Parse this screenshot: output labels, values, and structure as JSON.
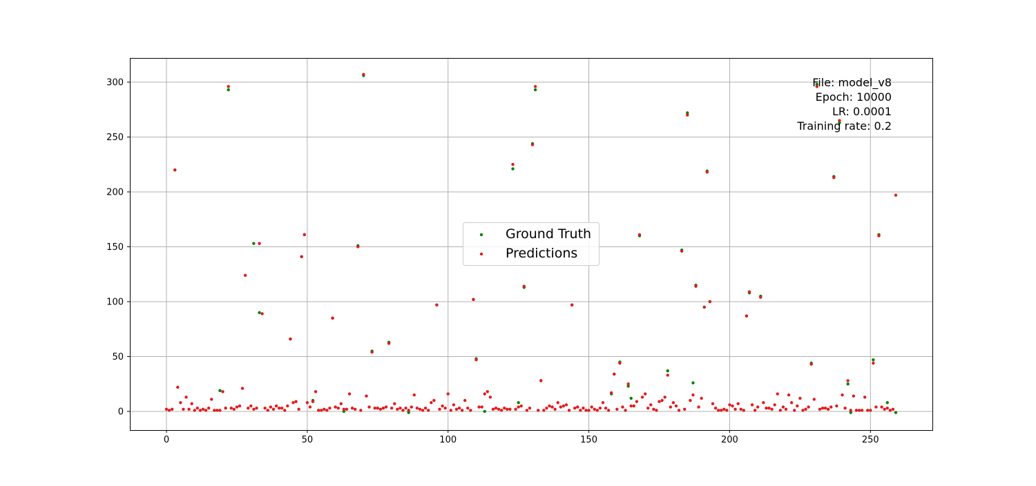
{
  "chart_data": {
    "type": "scatter",
    "title": "",
    "xlabel": "",
    "ylabel": "",
    "xlim": [
      -13,
      272
    ],
    "ylim": [
      -17,
      322
    ],
    "xticks": [
      0,
      50,
      100,
      150,
      200,
      250
    ],
    "yticks": [
      0,
      50,
      100,
      150,
      200,
      250,
      300
    ],
    "grid": true,
    "legend_position": "center",
    "annotation_lines": [
      "File: model_v8",
      "Epoch: 10000",
      "LR: 0.0001",
      "Training rate: 0.2"
    ],
    "series": [
      {
        "name": "Ground Truth",
        "color": "#008000",
        "x": [
          3,
          19,
          22,
          31,
          33,
          44,
          48,
          49,
          52,
          59,
          68,
          70,
          73,
          79,
          96,
          109,
          110,
          113,
          123,
          125,
          127,
          130,
          131,
          133,
          144,
          158,
          159,
          161,
          164,
          165,
          168,
          178,
          183,
          185,
          187,
          188,
          191,
          192,
          193,
          206,
          207,
          211,
          229,
          231,
          237,
          239,
          242,
          243,
          251,
          253,
          256,
          259,
          63,
          86
        ],
        "y": [
          220,
          19,
          293,
          153,
          90,
          66,
          141,
          161,
          10,
          85,
          151,
          306,
          55,
          63,
          97,
          102,
          48,
          0,
          221,
          8,
          113,
          244,
          293,
          28,
          97,
          16,
          34,
          45,
          23,
          12,
          160,
          37,
          147,
          272,
          26,
          115,
          95,
          219,
          100,
          87,
          108,
          105,
          44,
          298,
          214,
          263,
          25,
          -1,
          47,
          161,
          8,
          -1,
          0,
          -1
        ]
      },
      {
        "name": "Predictions",
        "color": "#e41a1c",
        "x": [
          0,
          1,
          2,
          3,
          4,
          5,
          6,
          7,
          8,
          9,
          10,
          11,
          12,
          13,
          14,
          15,
          16,
          17,
          18,
          19,
          20,
          21,
          22,
          23,
          24,
          25,
          26,
          27,
          28,
          29,
          30,
          31,
          32,
          33,
          34,
          35,
          36,
          37,
          38,
          39,
          40,
          41,
          42,
          43,
          44,
          45,
          46,
          47,
          48,
          49,
          50,
          51,
          52,
          53,
          54,
          55,
          56,
          57,
          58,
          59,
          60,
          61,
          62,
          63,
          64,
          65,
          66,
          67,
          68,
          69,
          70,
          71,
          72,
          73,
          74,
          75,
          76,
          77,
          78,
          79,
          80,
          81,
          82,
          83,
          84,
          85,
          86,
          87,
          88,
          89,
          90,
          91,
          92,
          93,
          94,
          95,
          96,
          97,
          98,
          99,
          100,
          101,
          102,
          103,
          104,
          105,
          106,
          107,
          108,
          109,
          110,
          111,
          112,
          113,
          114,
          115,
          116,
          117,
          118,
          119,
          120,
          121,
          122,
          123,
          124,
          125,
          126,
          127,
          128,
          129,
          130,
          131,
          132,
          133,
          134,
          135,
          136,
          137,
          138,
          139,
          140,
          141,
          142,
          143,
          144,
          145,
          146,
          147,
          148,
          149,
          150,
          151,
          152,
          153,
          154,
          155,
          156,
          157,
          158,
          159,
          160,
          161,
          162,
          163,
          164,
          165,
          166,
          167,
          168,
          169,
          170,
          171,
          172,
          173,
          174,
          175,
          176,
          177,
          178,
          179,
          180,
          181,
          182,
          183,
          184,
          185,
          186,
          187,
          188,
          189,
          190,
          191,
          192,
          193,
          194,
          195,
          196,
          197,
          198,
          199,
          200,
          201,
          202,
          203,
          204,
          205,
          206,
          207,
          208,
          209,
          210,
          211,
          212,
          213,
          214,
          215,
          216,
          217,
          218,
          219,
          220,
          221,
          222,
          223,
          224,
          225,
          226,
          227,
          228,
          229,
          230,
          231,
          232,
          233,
          234,
          235,
          236,
          237,
          238,
          239,
          240,
          241,
          242,
          243,
          244,
          245,
          246,
          247,
          248,
          249,
          250,
          251,
          252,
          253,
          254,
          255,
          256,
          257,
          258,
          259
        ],
        "y": [
          2,
          1,
          2,
          220,
          22,
          8,
          2,
          13,
          2,
          7,
          1,
          3,
          1,
          2,
          1,
          3,
          11,
          1,
          1,
          1,
          18,
          3,
          296,
          3,
          2,
          4,
          5,
          21,
          124,
          3,
          5,
          2,
          3,
          153,
          89,
          3,
          1,
          4,
          2,
          5,
          3,
          3,
          1,
          5,
          66,
          8,
          9,
          2,
          141,
          161,
          8,
          4,
          9,
          18,
          1,
          1,
          2,
          1,
          3,
          85,
          4,
          3,
          7,
          2,
          2,
          16,
          3,
          2,
          150,
          1,
          307,
          14,
          4,
          54,
          3,
          3,
          2,
          3,
          4,
          62,
          3,
          7,
          2,
          3,
          1,
          3,
          1,
          4,
          15,
          3,
          2,
          1,
          3,
          1,
          8,
          10,
          97,
          2,
          5,
          3,
          16,
          1,
          6,
          2,
          3,
          1,
          10,
          3,
          1,
          102,
          47,
          4,
          4,
          16,
          18,
          13,
          2,
          3,
          2,
          1,
          3,
          2,
          2,
          225,
          2,
          4,
          5,
          114,
          1,
          3,
          243,
          296,
          1,
          28,
          1,
          3,
          5,
          4,
          2,
          8,
          4,
          5,
          6,
          1,
          97,
          3,
          4,
          1,
          3,
          1,
          1,
          4,
          2,
          1,
          3,
          8,
          3,
          1,
          17,
          34,
          2,
          44,
          4,
          1,
          25,
          5,
          5,
          9,
          161,
          13,
          16,
          3,
          6,
          2,
          1,
          9,
          10,
          13,
          33,
          4,
          8,
          5,
          1,
          146,
          2,
          270,
          10,
          15,
          114,
          4,
          12,
          95,
          218,
          100,
          7,
          3,
          1,
          1,
          2,
          1,
          6,
          5,
          2,
          7,
          2,
          1,
          87,
          109,
          6,
          1,
          4,
          104,
          8,
          3,
          3,
          2,
          6,
          16,
          1,
          4,
          2,
          15,
          8,
          1,
          5,
          12,
          1,
          2,
          4,
          43,
          11,
          296,
          2,
          3,
          3,
          2,
          4,
          213,
          5,
          265,
          15,
          3,
          28,
          1,
          14,
          1,
          1,
          1,
          13,
          1,
          1,
          44,
          4,
          160,
          4,
          2,
          3,
          1,
          2,
          197
        ]
      }
    ]
  }
}
